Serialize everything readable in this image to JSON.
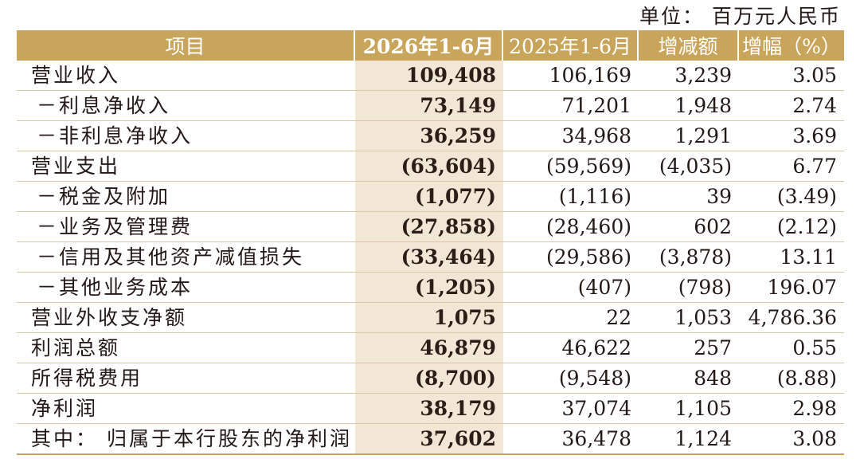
{
  "unit_label": "单位：  百万元人民币",
  "headers": {
    "item": "项目",
    "current": "2026年1-6月",
    "prior": "2025年1-6月",
    "change": "增减额",
    "pct": "增幅（%）"
  },
  "rows": [
    {
      "item": "营业收入",
      "current": "109,408",
      "prior": "106,169",
      "change": "3,239",
      "pct": "3.05"
    },
    {
      "item": "－利息净收入",
      "current": "73,149",
      "prior": "71,201",
      "change": "1,948",
      "pct": "2.74"
    },
    {
      "item": "－非利息净收入",
      "current": "36,259",
      "prior": "34,968",
      "change": "1,291",
      "pct": "3.69"
    },
    {
      "item": "营业支出",
      "current": "(63,604)",
      "prior": "(59,569)",
      "change": "(4,035)",
      "pct": "6.77"
    },
    {
      "item": "－税金及附加",
      "current": "(1,077)",
      "prior": "(1,116)",
      "change": "39",
      "pct": "(3.49)"
    },
    {
      "item": "－业务及管理费",
      "current": "(27,858)",
      "prior": "(28,460)",
      "change": "602",
      "pct": "(2.12)"
    },
    {
      "item": "－信用及其他资产减值损失",
      "current": "(33,464)",
      "prior": "(29,586)",
      "change": "(3,878)",
      "pct": "13.11"
    },
    {
      "item": "－其他业务成本",
      "current": "(1,205)",
      "prior": "(407)",
      "change": "(798)",
      "pct": "196.07"
    },
    {
      "item": "营业外收支净额",
      "current": "1,075",
      "prior": "22",
      "change": "1,053",
      "pct": "4,786.36"
    },
    {
      "item": "利润总额",
      "current": "46,879",
      "prior": "46,622",
      "change": "257",
      "pct": "0.55"
    },
    {
      "item": "所得税费用",
      "current": "(8,700)",
      "prior": "(9,548)",
      "change": "848",
      "pct": "(8.88)"
    },
    {
      "item": "净利润",
      "current": "38,179",
      "prior": "37,074",
      "change": "1,105",
      "pct": "2.98"
    },
    {
      "item": "其中：  归属于本行股东的净利润",
      "current": "37,602",
      "prior": "36,478",
      "change": "1,124",
      "pct": "3.08"
    }
  ]
}
